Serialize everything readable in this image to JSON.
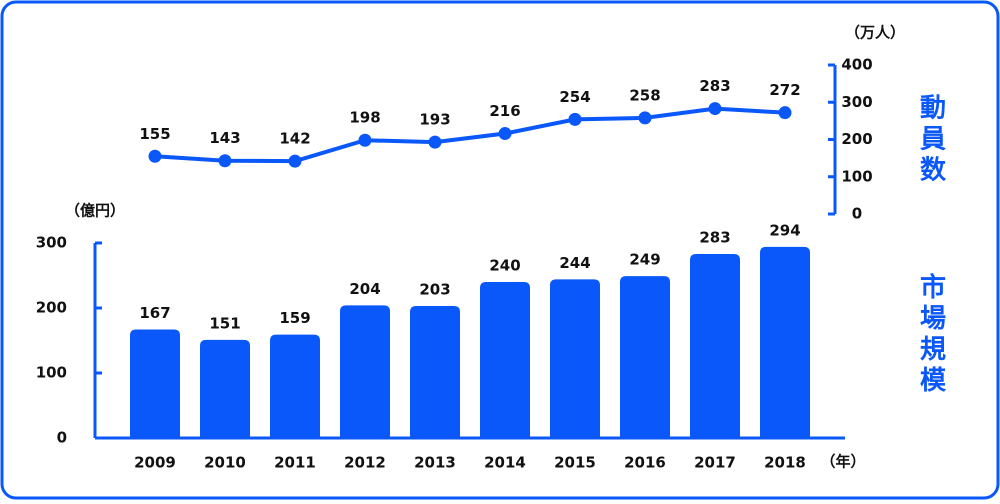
{
  "chart_data": [
    {
      "type": "line",
      "axis_label": "（万人）",
      "side_label": "動員数",
      "values": [
        155,
        143,
        142,
        198,
        193,
        216,
        254,
        258,
        283,
        272
      ],
      "color": "#0a57fa",
      "ylim": [
        0,
        400
      ],
      "yticks": [
        0,
        100,
        200,
        300,
        400
      ],
      "axis_side": "right"
    },
    {
      "type": "bar",
      "axis_label": "（億円）",
      "side_label": "市場規模",
      "x_axis_label": "（年）",
      "categories": [
        "2009",
        "2010",
        "2011",
        "2012",
        "2013",
        "2014",
        "2015",
        "2016",
        "2017",
        "2018"
      ],
      "values": [
        167,
        151,
        159,
        204,
        203,
        240,
        244,
        249,
        283,
        294
      ],
      "color": "#0a57fa",
      "ylim": [
        0,
        300
      ],
      "yticks": [
        0,
        100,
        200,
        300
      ],
      "axis_side": "left"
    }
  ]
}
